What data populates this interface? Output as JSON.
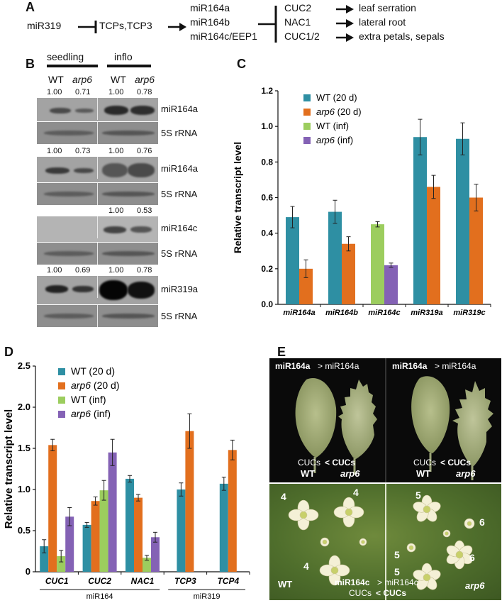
{
  "panelA": {
    "label": "A",
    "mir319": "miR319",
    "tcps": "TCPs,TCP3",
    "mirs": [
      "miR164a",
      "miR164b",
      "miR164c/EEP1"
    ],
    "targets": [
      "CUC2",
      "NAC1",
      "CUC1/2"
    ],
    "effects": [
      "leaf serration",
      "lateral root",
      "extra petals, sepals"
    ]
  },
  "panelB": {
    "label": "B",
    "groups": [
      "seedling",
      "inflo"
    ],
    "lanes": [
      "WT",
      "arp6",
      "WT",
      "arp6"
    ],
    "blots": [
      {
        "quant": [
          "1.00",
          "0.71",
          "1.00",
          "0.78"
        ],
        "probe": "miR164a",
        "control": "5S rRNA"
      },
      {
        "quant": [
          "1.00",
          "0.73",
          "1.00",
          "0.76"
        ],
        "probe": "miR164a",
        "control": "5S rRNA"
      },
      {
        "quant": [
          "",
          "",
          "1.00",
          "0.53"
        ],
        "probe": "miR164c",
        "control": "5S rRNA"
      },
      {
        "quant": [
          "1.00",
          "0.69",
          "1.00",
          "0.78"
        ],
        "probe": "miR319a",
        "control": "5S rRNA"
      }
    ]
  },
  "chart_data": [
    {
      "panel": "C",
      "type": "bar",
      "ylabel": "Relative transcript level",
      "ylim": [
        0,
        1.2
      ],
      "yticks": [
        "0.0",
        "0.2",
        "0.4",
        "0.6",
        "0.8",
        "1.0",
        "1.2"
      ],
      "categories": [
        "miR164a",
        "miR164b",
        "miR164c",
        "miR319a",
        "miR319c"
      ],
      "legend_position": "top-left",
      "series": [
        {
          "name": "WT (20 d)",
          "color": "#2e8fa3",
          "values": [
            0.49,
            0.52,
            null,
            0.94,
            0.93
          ],
          "errors": [
            0.06,
            0.065,
            null,
            0.1,
            0.09
          ]
        },
        {
          "name": "arp6 (20 d)",
          "color": "#e26f1e",
          "values": [
            0.2,
            0.34,
            null,
            0.66,
            0.6
          ],
          "errors": [
            0.05,
            0.04,
            null,
            0.065,
            0.075
          ]
        },
        {
          "name": "WT (inf)",
          "color": "#9ccd5e",
          "values": [
            null,
            null,
            0.45,
            null,
            null
          ],
          "errors": [
            null,
            null,
            0.015,
            null,
            null
          ]
        },
        {
          "name": "arp6 (inf)",
          "color": "#8462b5",
          "values": [
            null,
            null,
            0.22,
            null,
            null
          ],
          "errors": [
            null,
            null,
            0.012,
            null,
            null
          ]
        }
      ]
    },
    {
      "panel": "D",
      "type": "bar",
      "ylabel": "Relative transcript level",
      "ylim": [
        0,
        2.5
      ],
      "yticks": [
        "0",
        "0.5",
        "1.0",
        "1.5",
        "2.0",
        "2.5"
      ],
      "categories": [
        "CUC1",
        "CUC2",
        "NAC1",
        "TCP3",
        "TCP4"
      ],
      "groups": [
        {
          "label": "miR164",
          "from": 0,
          "to": 2
        },
        {
          "label": "miR319",
          "from": 3,
          "to": 4
        }
      ],
      "legend_position": "top-left",
      "series": [
        {
          "name": "WT (20 d)",
          "color": "#2e8fa3",
          "values": [
            0.31,
            0.57,
            1.13,
            1.0,
            1.07
          ],
          "errors": [
            0.08,
            0.03,
            0.04,
            0.08,
            0.08
          ]
        },
        {
          "name": "arp6 (20 d)",
          "color": "#e26f1e",
          "values": [
            1.54,
            0.86,
            0.9,
            1.71,
            1.48
          ],
          "errors": [
            0.07,
            0.05,
            0.04,
            0.21,
            0.12
          ]
        },
        {
          "name": "WT (inf)",
          "color": "#9ccd5e",
          "values": [
            0.19,
            0.99,
            0.17,
            null,
            null
          ],
          "errors": [
            0.07,
            0.12,
            0.03,
            null,
            null
          ]
        },
        {
          "name": "arp6 (inf)",
          "color": "#8462b5",
          "values": [
            0.67,
            1.45,
            0.42,
            null,
            null
          ],
          "errors": [
            0.11,
            0.16,
            0.06,
            null,
            null
          ]
        }
      ]
    }
  ],
  "panelC": {
    "label": "C"
  },
  "panelD": {
    "label": "D"
  },
  "panelE": {
    "label": "E",
    "top_left_title_b": "miR164a",
    "top_left_title_r": "> miR164a",
    "top_right_title_b": "miR164a",
    "top_right_title_r": "> miR164a",
    "cucs_left_1": "CUCs",
    "cucs_left_2": "< CUCs",
    "cucs_right_1": "CUCs",
    "cucs_right_2": "< CUCs",
    "wt_1": "WT",
    "arp6_1": "arp6",
    "wt_2": "WT",
    "arp6_2": "arp6",
    "num_4a": "4",
    "num_4b": "4",
    "num_4c": "4",
    "num_5a": "5",
    "num_5b": "5",
    "num_5c": "5",
    "num_6a": "6",
    "num_6b": "6",
    "bottom_wt": "WT",
    "bottom_mir_b": "miR164c",
    "bottom_mir_r": "> miR164c",
    "bottom_cucs_1": "CUCs",
    "bottom_cucs_2": "< CUCs",
    "bottom_arp6": "arp6",
    "bg_dark": "#0a0a0a",
    "bg_green": "#4f6e2c"
  }
}
